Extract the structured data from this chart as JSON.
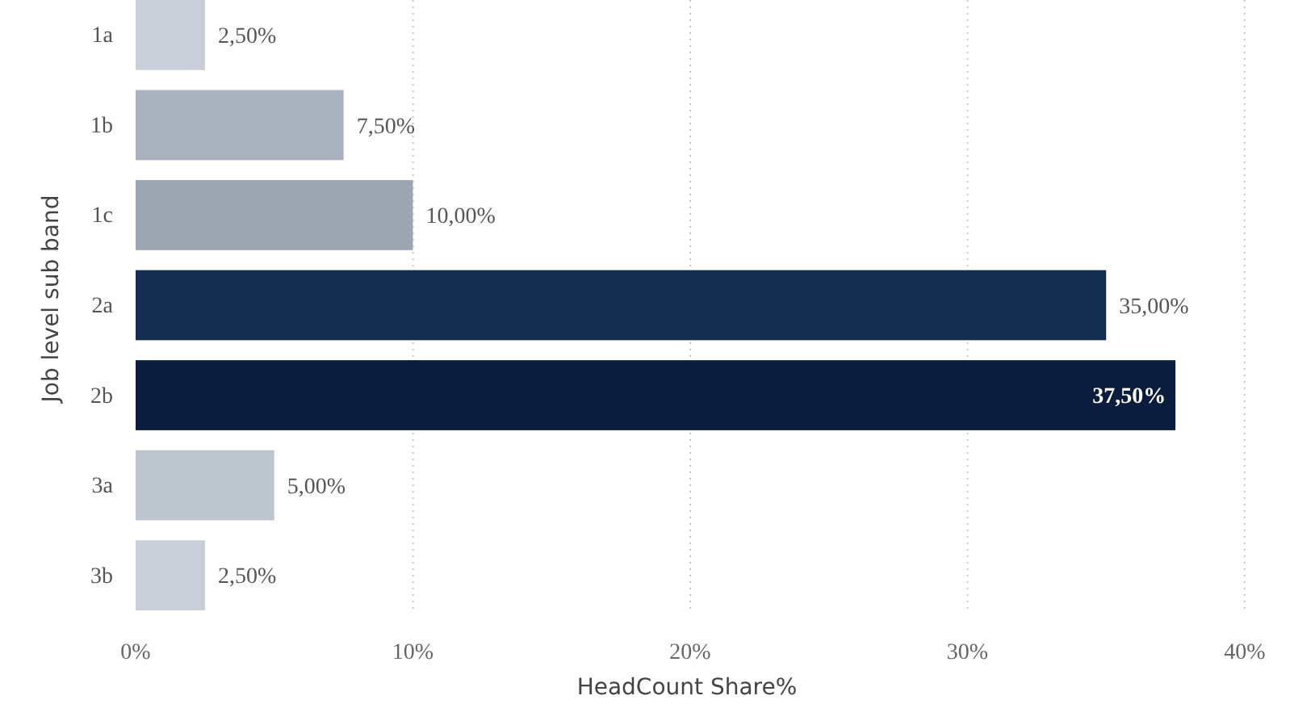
{
  "chart_data": {
    "type": "bar",
    "orientation": "horizontal",
    "ylabel": "Job level sub band",
    "xlabel": "HeadCount Share%",
    "categories": [
      "1a",
      "1b",
      "1c",
      "2a",
      "2b",
      "3a",
      "3b"
    ],
    "values": [
      2.5,
      7.5,
      10,
      35,
      37.5,
      5,
      2.5
    ],
    "colors": [
      "#c9cfd8",
      "#a8b1bd",
      "#9ba6b2",
      "#132c4f",
      "#0b1d3d",
      "#bcc4ce",
      "#c9cfd8"
    ],
    "value_labels": [
      "2,50%",
      "7,50%",
      "10,00%",
      "35,00%",
      "37,50%",
      "5,00%",
      "2,50%"
    ],
    "xlim": [
      0,
      40
    ],
    "xticks": [
      {
        "value": 0,
        "label": "0%"
      },
      {
        "value": 10,
        "label": "10%"
      },
      {
        "value": 20,
        "label": "20%"
      },
      {
        "value": 30,
        "label": "30%"
      },
      {
        "value": 40,
        "label": "40%"
      }
    ],
    "grid": "x"
  }
}
